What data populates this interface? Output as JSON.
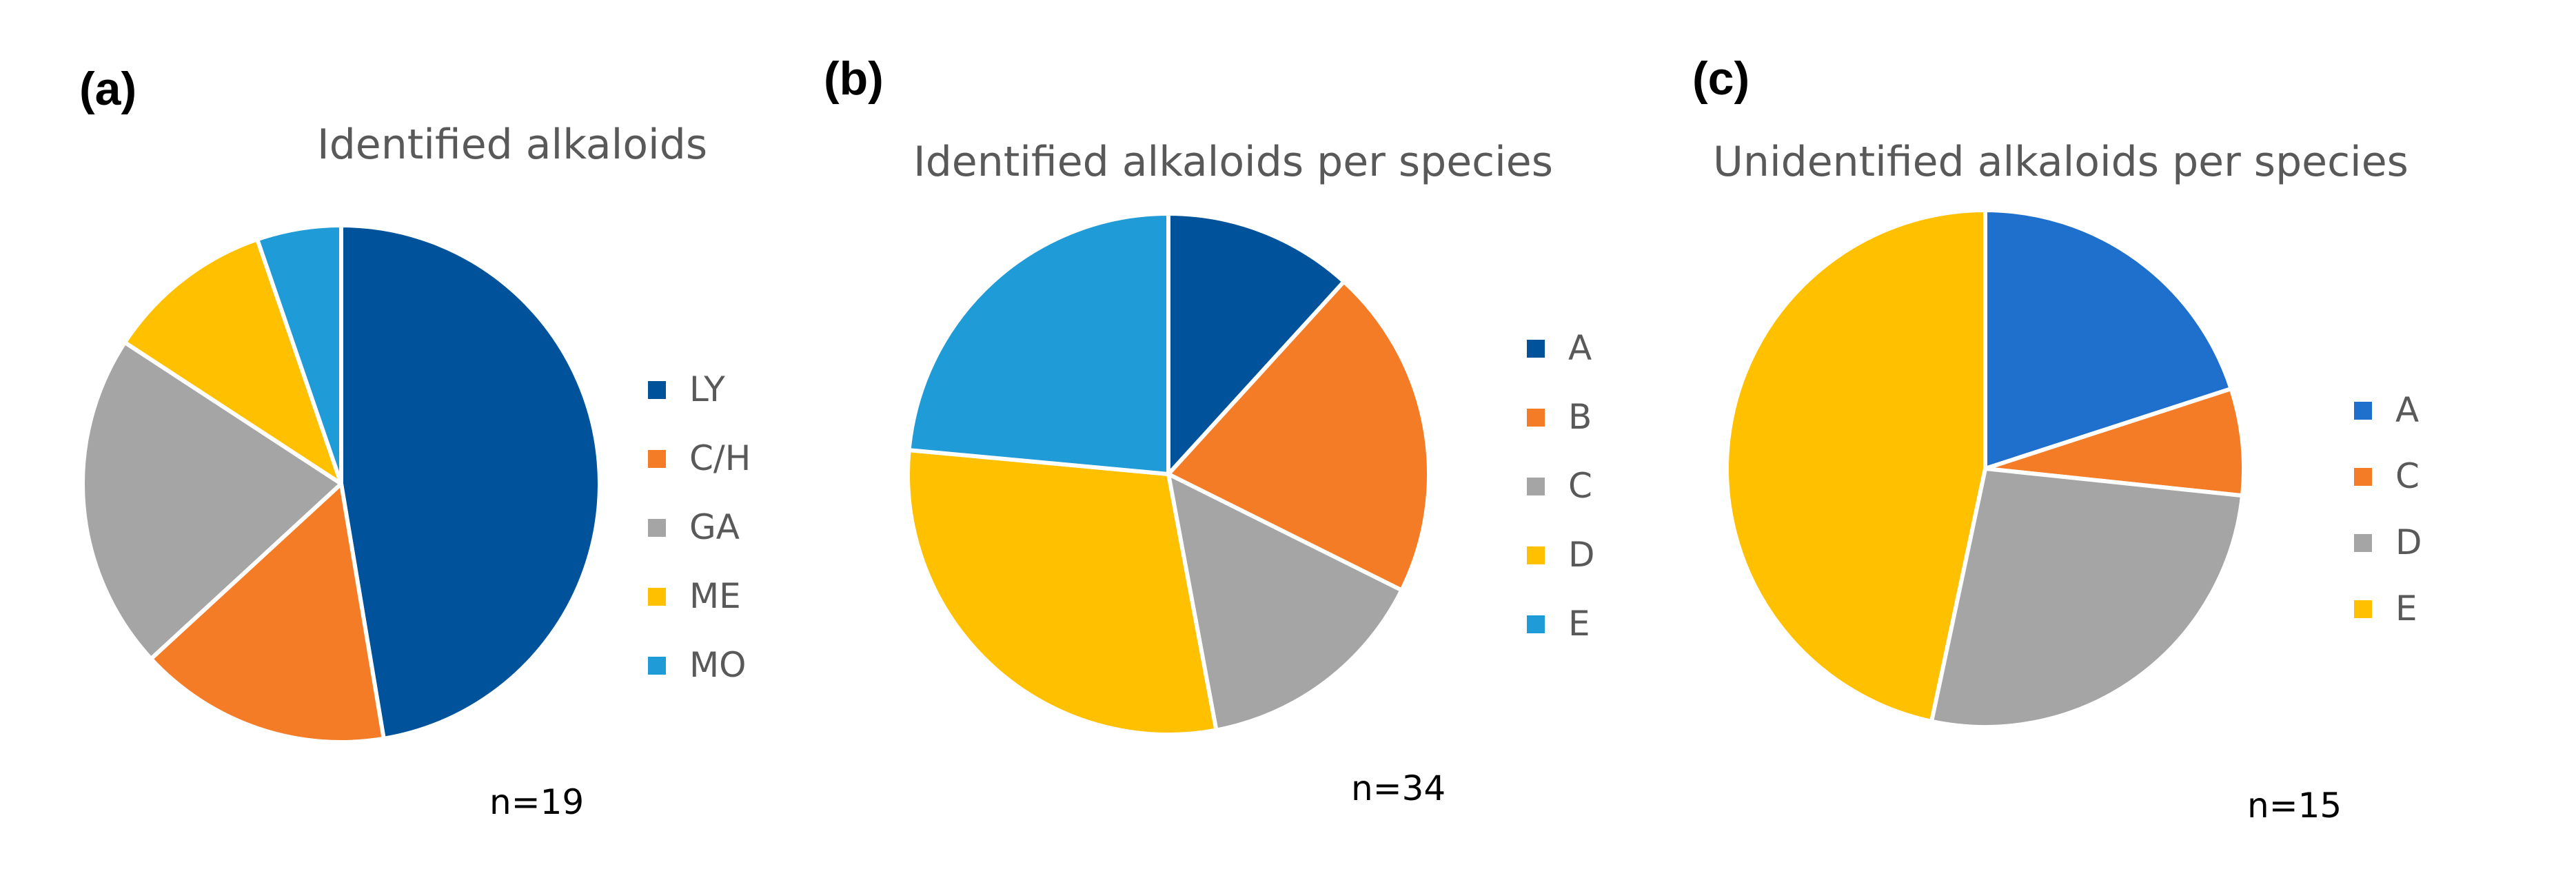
{
  "chart_data": [
    {
      "type": "pie",
      "panel_label": "(a)",
      "title": "Identified alkaloids",
      "note": "n=19",
      "categories": [
        "LY",
        "C/H",
        "GA",
        "ME",
        "MO"
      ],
      "values": [
        9,
        3,
        4,
        2,
        1
      ],
      "colors": [
        "#00539B",
        "#F47C26",
        "#A5A5A5",
        "#FFC000",
        "#1F9BD7"
      ],
      "legend_position": "right"
    },
    {
      "type": "pie",
      "panel_label": "(b)",
      "title": "Identified alkaloids per species",
      "note": "n=34",
      "categories": [
        "A",
        "B",
        "C",
        "D",
        "E"
      ],
      "values": [
        4,
        7,
        5,
        10,
        8
      ],
      "colors": [
        "#00539B",
        "#F47C26",
        "#A5A5A5",
        "#FFC000",
        "#1F9BD7"
      ],
      "legend_position": "right"
    },
    {
      "type": "pie",
      "panel_label": "(c)",
      "title": "Unidentified alkaloids per species",
      "note": "n=15",
      "categories": [
        "A",
        "C",
        "D",
        "E"
      ],
      "values": [
        3,
        1,
        4,
        7
      ],
      "colors": [
        "#1F6FCC",
        "#F47C26",
        "#A5A5A5",
        "#FFC000"
      ],
      "legend_position": "right"
    }
  ]
}
